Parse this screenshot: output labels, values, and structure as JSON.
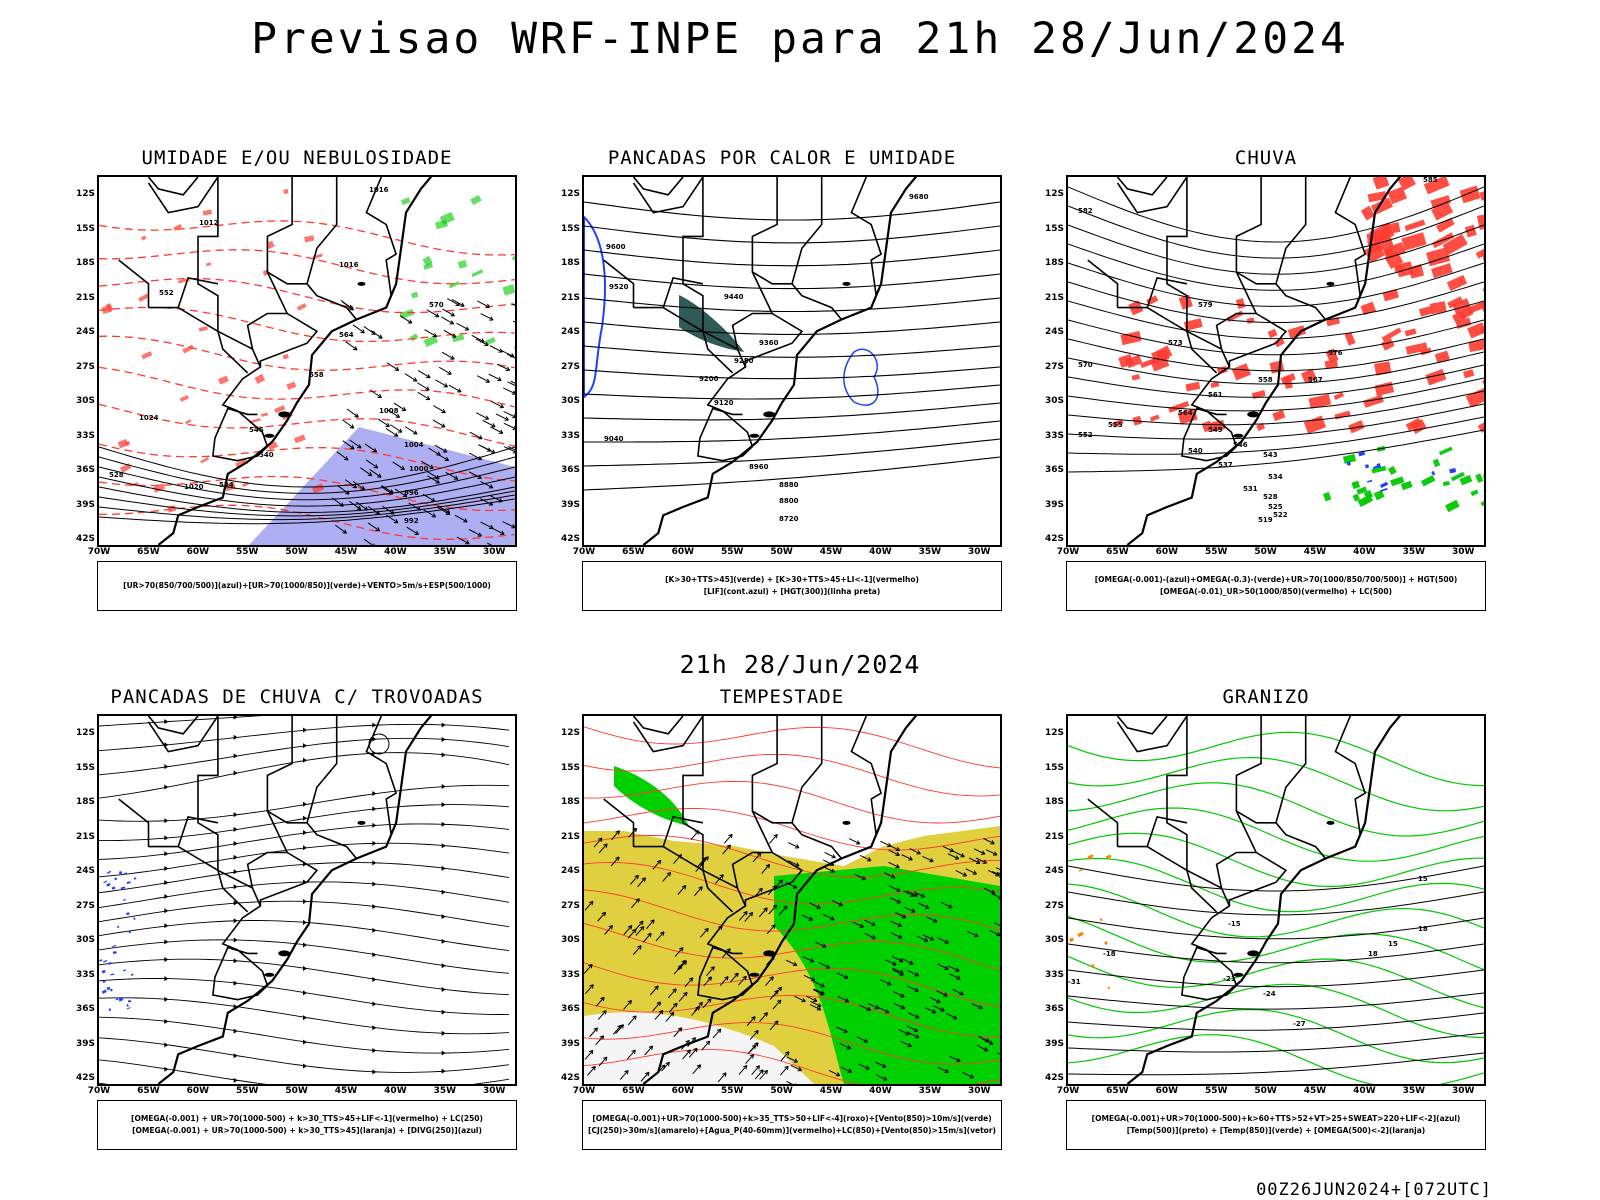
{
  "header": {
    "title": "Previsao WRF-INPE  para 21h 28/Jun/2024",
    "mid_date": "21h 28/Jun/2024",
    "footer_stamp": "00Z26JUN2024+[072UTC]"
  },
  "axes": {
    "lat_ticks": [
      "12S",
      "15S",
      "18S",
      "21S",
      "24S",
      "27S",
      "30S",
      "33S",
      "36S",
      "39S",
      "42S"
    ],
    "lon_ticks": [
      "70W",
      "65W",
      "60W",
      "55W",
      "50W",
      "45W",
      "40W",
      "35W",
      "30W"
    ]
  },
  "panels": [
    {
      "id": "umidade",
      "title": "UMIDADE E/OU NEBULOSIDADE",
      "legend": [
        "[UR>70(850/700/500)](azul)+[UR>70(1000/850)](verde)+VENTO>5m/s+ESP(500/1000)"
      ],
      "contour_labels": [
        "1016",
        "1012",
        "1016",
        "1008",
        "1004",
        "1000",
        "996",
        "992",
        "1020",
        "1024",
        "570",
        "564",
        "558",
        "552",
        "546",
        "540",
        "534",
        "528"
      ]
    },
    {
      "id": "pancadas-calor",
      "title": "PANCADAS POR CALOR E UMIDADE",
      "legend": [
        "[K>30+TTS>45](verde) + [K>30+TTS>45+LI<-1](vermelho)",
        "[LIF](cont.azul) + [HGT(300)](linha preta)"
      ],
      "contour_labels": [
        "9680",
        "9600",
        "9520",
        "9440",
        "9360",
        "9280",
        "9200",
        "9120",
        "9040",
        "8960",
        "8880",
        "8800",
        "8720"
      ]
    },
    {
      "id": "chuva",
      "title": "CHUVA",
      "legend": [
        "[OMEGA(-0.001)-(azul)+OMEGA(-0.3)-(verde)+UR>70(1000/850/700/500)] + HGT(500)",
        "[OMEGA(-0.01)_UR>50(1000/850)(vermelho) + LC(500)"
      ],
      "contour_labels": [
        "585",
        "582",
        "579",
        "576",
        "573",
        "570",
        "567",
        "564",
        "561",
        "558",
        "555",
        "552",
        "549",
        "546",
        "543",
        "540",
        "537",
        "534",
        "531",
        "528",
        "525",
        "522",
        "519"
      ]
    },
    {
      "id": "pancadas-trovoadas",
      "title": "PANCADAS DE CHUVA C/ TROVOADAS",
      "legend": [
        "[OMEGA(-0.001) + UR>70(1000-500) + k>30_TTS>45+LIF<-1](vermelho) + LC(250)",
        "[OMEGA(-0.001) + UR>70(1000-500) + k>30_TTS>45](laranja) + [DIVG(250)](azul)"
      ],
      "contour_labels": []
    },
    {
      "id": "tempestade",
      "title": "TEMPESTADE",
      "legend": [
        "[OMEGA(-0.001)+UR>70(1000-500)+k>35_TTS>50+LIF<-4](roxo)+[Vento(850)>10m/s](verde)",
        "[CJ(250)>30m/s](amarelo)+[Agua_P(40-60mm)](vermelho)+LC(850)+[Vento(850)>15m/s](vetor)"
      ],
      "contour_labels": []
    },
    {
      "id": "granizo",
      "title": "GRANIZO",
      "legend": [
        "[OMEGA(-0.001)+UR>70(1000-500)+k>60+TTS>52+VT>25+SWEAT>220+LIF<-2](azul)",
        "[Temp(500)](preto) + [Temp(850)](verde) + [OMEGA(500)<-2](laranja)"
      ],
      "contour_labels": [
        "-15",
        "-18",
        "-21",
        "-24",
        "-27",
        "-31",
        "15",
        "15",
        "18",
        "18"
      ]
    }
  ],
  "colors": {
    "red_contour": "#ff3b30",
    "green": "#00c800",
    "blue": "#2040ff",
    "lavender": "#a0a0f0",
    "dark_teal": "#2f5a58",
    "yellow": "#e0d040",
    "bright_green": "#00d000",
    "orange": "#ff8000"
  }
}
